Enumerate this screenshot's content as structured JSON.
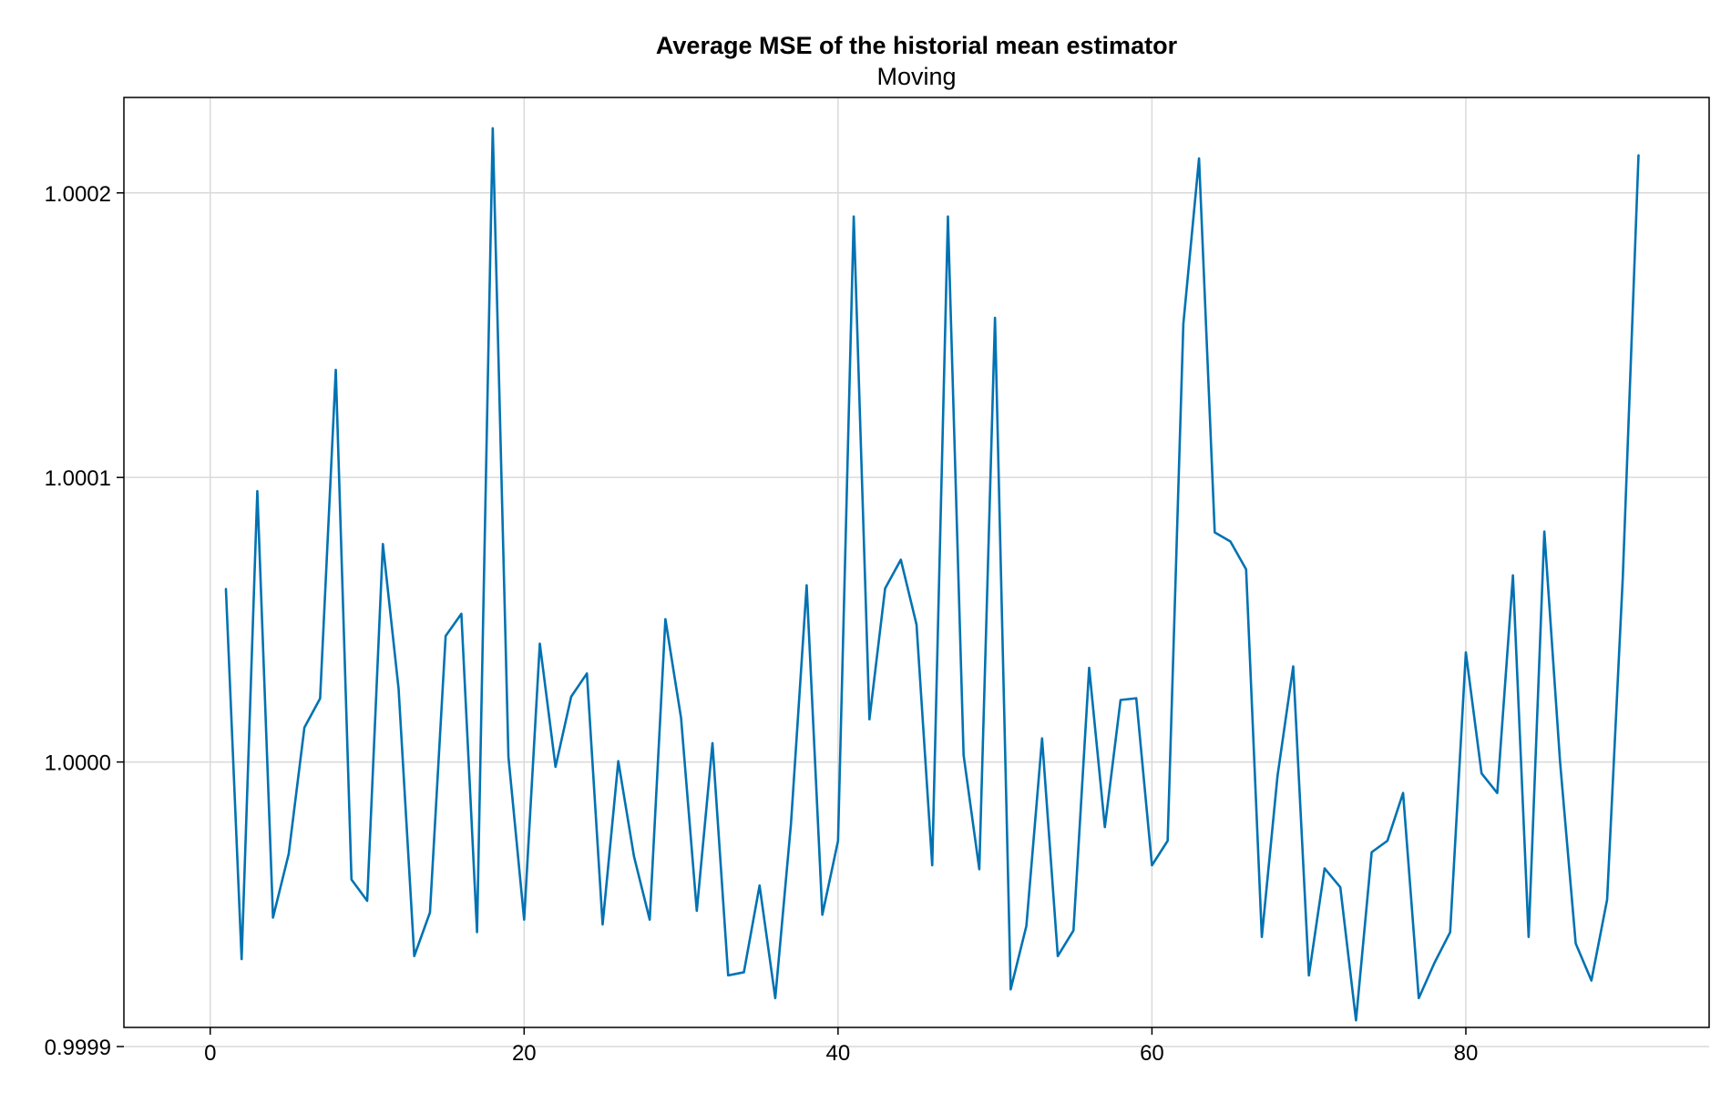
{
  "chart_data": {
    "type": "line",
    "title": "Average MSE of the historial mean estimator",
    "subtitle": "Moving",
    "xlabel": "",
    "ylabel": "",
    "xlim": [
      -5.5,
      95.5
    ],
    "ylim": [
      0.99990672,
      1.00023354
    ],
    "xticks": [
      0,
      20,
      40,
      60,
      80
    ],
    "xtick_labels": [
      "0",
      "20",
      "40",
      "60",
      "80"
    ],
    "yticks": [
      0.9999,
      1.0,
      1.0001,
      1.0002
    ],
    "ytick_labels": [
      "0.9999",
      "1.0000",
      "1.0001",
      "1.0002"
    ],
    "grid": true,
    "line_color": "#0072b2",
    "series": [
      {
        "x": [
          1,
          2,
          3,
          4,
          5,
          6,
          7,
          8,
          9,
          10,
          11,
          12,
          13,
          14,
          15,
          16,
          17,
          18,
          19,
          20,
          21,
          22,
          23,
          24,
          25,
          26,
          27,
          28,
          29,
          30,
          31,
          32,
          33,
          34,
          35,
          36,
          37,
          38,
          39,
          40,
          41,
          42,
          43,
          44,
          45,
          46,
          47,
          48,
          49,
          50,
          51,
          52,
          53,
          54,
          55,
          56,
          57,
          58,
          59,
          60,
          61,
          62,
          63,
          64,
          65,
          66,
          67,
          68,
          69,
          70,
          71,
          72,
          73,
          74,
          75,
          76,
          77,
          78,
          79,
          80,
          81,
          82,
          83,
          84,
          85,
          86,
          87,
          88,
          89,
          90,
          91
        ],
        "values": [
          1.0000608,
          0.9999307,
          1.0000952,
          0.9999453,
          0.9999677,
          1.0000121,
          1.0000223,
          1.0001378,
          0.9999587,
          0.9999512,
          1.0000766,
          1.0000258,
          0.9999318,
          0.9999471,
          1.0000443,
          1.0000521,
          0.9999402,
          1.0002227,
          1.0000018,
          0.9999446,
          1.0000416,
          0.9999983,
          1.000023,
          1.0000311,
          0.9999429,
          1.0000003,
          0.9999668,
          0.9999446,
          1.0000502,
          1.0000154,
          0.9999477,
          1.0000066,
          0.999925,
          0.9999261,
          0.9999566,
          0.999917,
          0.9999782,
          1.0000621,
          0.9999463,
          0.9999723,
          1.0001917,
          1.000015,
          1.000061,
          1.0000711,
          1.0000483,
          0.9999637,
          1.0001917,
          1.0000024,
          0.9999623,
          1.0001561,
          0.9999201,
          0.9999424,
          1.0000083,
          0.9999318,
          0.9999408,
          1.0000331,
          0.9999771,
          1.0000218,
          1.0000224,
          0.9999637,
          0.9999723,
          1.0001539,
          1.0002121,
          1.0000807,
          1.0000775,
          1.0000677,
          0.9999385,
          0.9999951,
          1.0000336,
          0.999925,
          0.9999626,
          0.999956,
          0.9999092,
          0.9999683,
          0.9999723,
          0.9999891,
          0.999917,
          0.9999294,
          0.9999402,
          1.0000385,
          0.999996,
          0.9999891,
          1.0000656,
          0.9999385,
          1.000081,
          1.0000002,
          0.9999362,
          0.9999232,
          0.9999516,
          1.000065,
          1.0002132
        ]
      }
    ]
  }
}
